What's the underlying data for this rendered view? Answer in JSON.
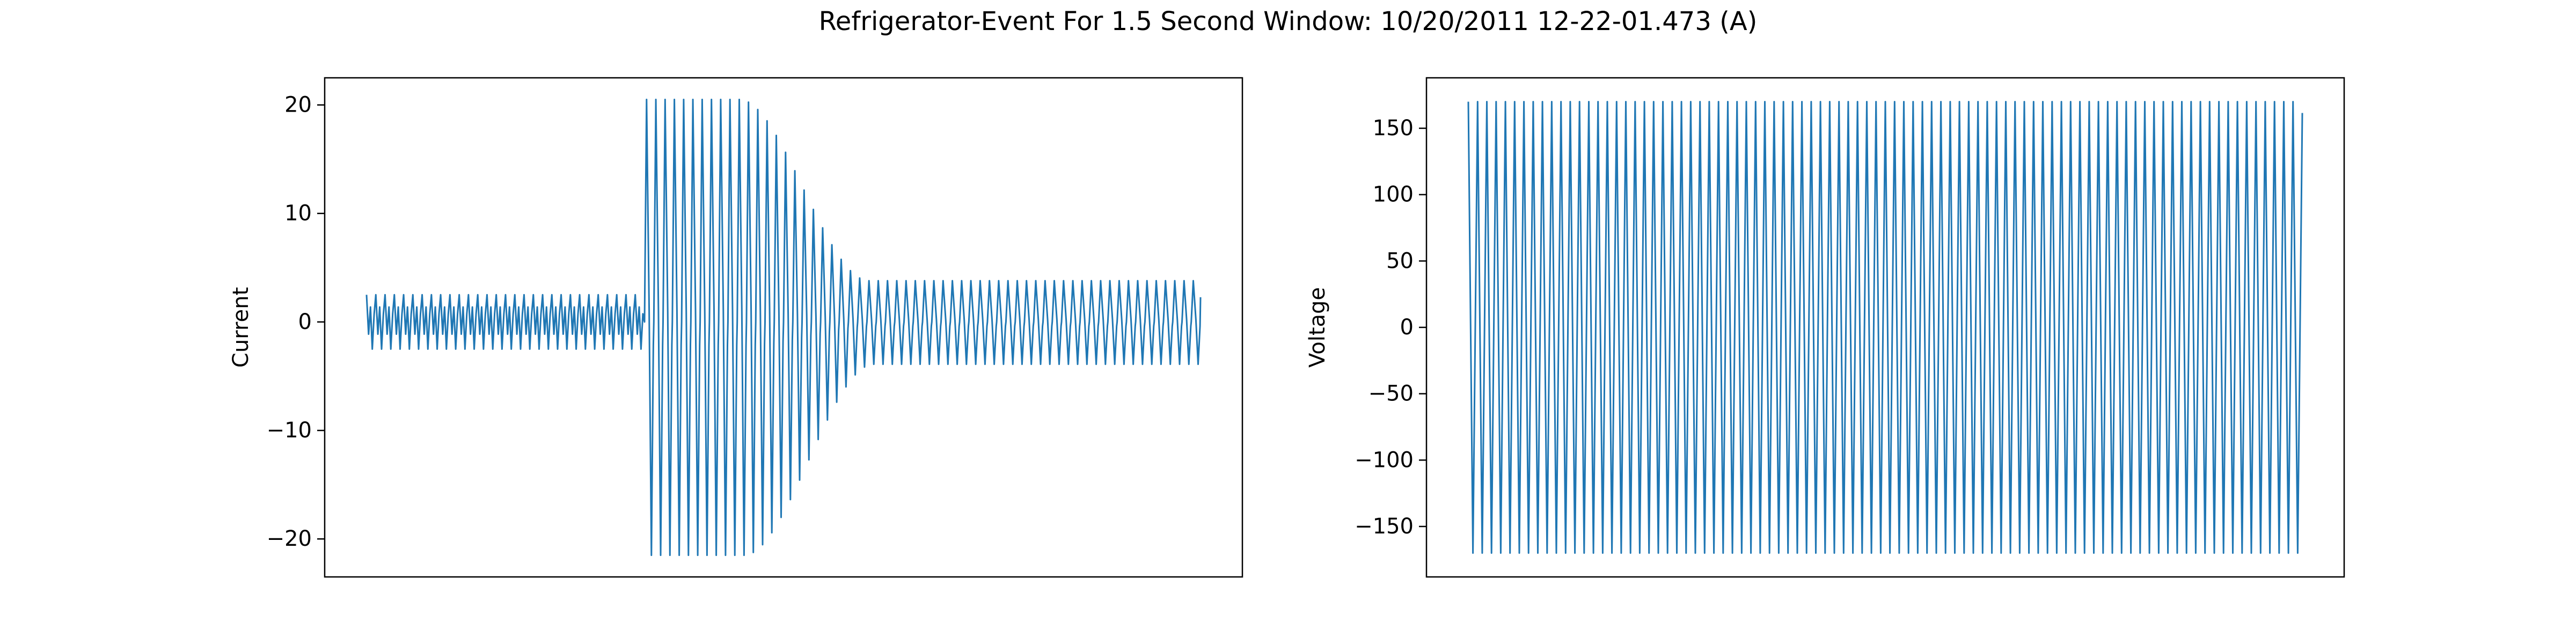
{
  "figure": {
    "title": "Refrigerator-Event For 1.5 Second Window: 10/20/2011 12-22-01.473 (A)"
  },
  "chart_data": [
    {
      "type": "line",
      "title": "",
      "xlabel": "",
      "ylabel": "Current",
      "ylim": [
        -23.5,
        22.5
      ],
      "yticks": [
        -20,
        -10,
        0,
        10,
        20
      ],
      "ytick_labels": [
        "−20",
        "−10",
        "0",
        "10",
        "20"
      ],
      "x_ticks_shown": false,
      "grid": false,
      "series": [
        {
          "color": "#1f77b4",
          "cycles": 90,
          "event_cycle": 30,
          "steady_before_peak": 2.5,
          "steady_before_trough": -2.5,
          "inrush_peak": 20.5,
          "inrush_trough": -21.5,
          "inrush_plateau_cycles": 10,
          "inrush_decay_cycles": 14,
          "steady_after_peak": 3.8,
          "steady_after_trough": -3.9
        }
      ]
    },
    {
      "type": "line",
      "title": "",
      "xlabel": "",
      "ylabel": "Voltage",
      "ylim": [
        -188,
        188
      ],
      "yticks": [
        -150,
        -100,
        -50,
        0,
        50,
        100,
        150
      ],
      "ytick_labels": [
        "−150",
        "−100",
        "−50",
        "0",
        "50",
        "100",
        "150"
      ],
      "x_ticks_shown": false,
      "grid": false,
      "series": [
        {
          "color": "#1f77b4",
          "cycles": 90,
          "amplitude": 170
        }
      ]
    }
  ]
}
